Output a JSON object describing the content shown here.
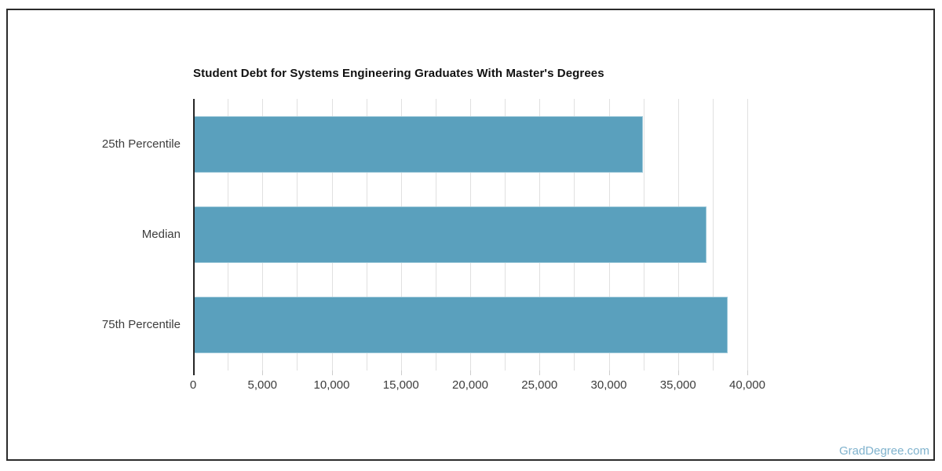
{
  "page": {
    "watermark": "GradDegree.com",
    "watermark_color": "#7fb2cd",
    "frame_color": "#2b2b2b",
    "background": "#ffffff"
  },
  "chart_data": {
    "type": "bar",
    "orientation": "horizontal",
    "title": "Student Debt for Systems Engineering Graduates With Master's Degrees",
    "categories": [
      "25th Percentile",
      "Median",
      "75th Percentile"
    ],
    "values": [
      32400,
      37000,
      38500
    ],
    "xlabel": "",
    "ylabel": "",
    "xlim": [
      0,
      43000
    ],
    "x_ticks": [
      0,
      5000,
      10000,
      15000,
      20000,
      25000,
      30000,
      35000,
      40000
    ],
    "x_tick_labels": [
      "0",
      "5,000",
      "10,000",
      "15,000",
      "20,000",
      "25,000",
      "30,000",
      "35,000",
      "40,000"
    ],
    "gridline_step": 2500,
    "gridline_max": 40000,
    "grid": true,
    "legend": false,
    "bar_color": "#5aa0bd",
    "bar_edge_color": "#9cc8d9",
    "gridline_color": "#e0e0e0",
    "axis_color": "#262626",
    "tick_label_color": "#3d3d3d"
  }
}
